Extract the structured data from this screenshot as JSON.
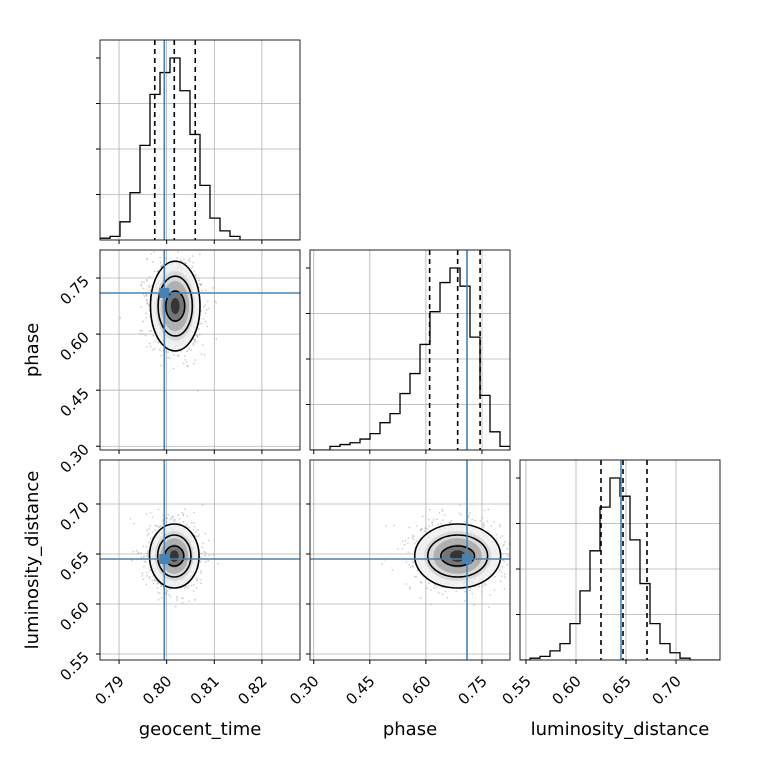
{
  "chart_data": {
    "type": "corner",
    "parameters": [
      "geocent_time",
      "phase",
      "luminosity_distance"
    ],
    "ranges": {
      "geocent_time": [
        0.786,
        0.828
      ],
      "phase": [
        0.29,
        0.825
      ],
      "luminosity_distance": [
        0.544,
        0.744
      ]
    },
    "ticks": {
      "geocent_time": [
        "0.79",
        "0.80",
        "0.81",
        "0.82"
      ],
      "phase": [
        "0.30",
        "0.45",
        "0.60",
        "0.75"
      ],
      "luminosity_distance": [
        "0.55",
        "0.60",
        "0.65",
        "0.70"
      ]
    },
    "truths": {
      "geocent_time": 0.7995,
      "phase": 0.71,
      "luminosity_distance": 0.645
    },
    "quantiles": {
      "geocent_time": [
        0.7975,
        0.8016,
        0.806
      ],
      "phase": [
        0.61,
        0.685,
        0.745
      ],
      "luminosity_distance": [
        0.625,
        0.647,
        0.671
      ]
    },
    "histograms": {
      "geocent_time": {
        "edges": [
          0.786,
          0.7881,
          0.7902,
          0.7923,
          0.7944,
          0.7965,
          0.7986,
          0.8007,
          0.8028,
          0.8049,
          0.807,
          0.8091,
          0.8112,
          0.8133,
          0.8154,
          0.8175,
          0.8196,
          0.8217,
          0.8238,
          0.8259,
          0.828
        ],
        "counts": [
          0.01,
          0.02,
          0.1,
          0.26,
          0.52,
          0.8,
          0.92,
          1.0,
          0.82,
          0.58,
          0.3,
          0.12,
          0.05,
          0.02,
          0.0,
          0.0,
          0.0,
          0.0,
          0.0,
          0.0
        ]
      },
      "phase": {
        "edges": [
          0.29,
          0.3168,
          0.3435,
          0.3703,
          0.397,
          0.4238,
          0.4505,
          0.4773,
          0.504,
          0.5308,
          0.5575,
          0.5843,
          0.611,
          0.6378,
          0.6645,
          0.6913,
          0.718,
          0.7448,
          0.7715,
          0.7983,
          0.825
        ],
        "counts": [
          0.0,
          0.0,
          0.02,
          0.03,
          0.04,
          0.06,
          0.09,
          0.15,
          0.2,
          0.31,
          0.42,
          0.58,
          0.76,
          0.92,
          1.0,
          0.9,
          0.62,
          0.3,
          0.1,
          0.02
        ]
      },
      "luminosity_distance": {
        "edges": [
          0.544,
          0.554,
          0.564,
          0.574,
          0.584,
          0.594,
          0.604,
          0.614,
          0.624,
          0.634,
          0.644,
          0.654,
          0.664,
          0.674,
          0.684,
          0.694,
          0.704,
          0.714,
          0.724,
          0.734,
          0.744
        ],
        "counts": [
          0.0,
          0.01,
          0.02,
          0.05,
          0.09,
          0.2,
          0.38,
          0.6,
          0.84,
          1.0,
          0.9,
          0.66,
          0.42,
          0.2,
          0.09,
          0.04,
          0.01,
          0.0,
          0.0,
          0.0
        ]
      }
    },
    "contours": {
      "phase_vs_geocent_time": {
        "center": [
          0.8018,
          0.675
        ],
        "levels": [
          {
            "rx": 0.002,
            "ry": 0.04
          },
          {
            "rx": 0.0036,
            "ry": 0.08
          },
          {
            "rx": 0.0052,
            "ry": 0.12
          }
        ]
      },
      "luminosity_distance_vs_geocent_time": {
        "center": [
          0.8016,
          0.648
        ],
        "levels": [
          {
            "rx": 0.002,
            "ry": 0.01
          },
          {
            "rx": 0.0035,
            "ry": 0.021
          },
          {
            "rx": 0.0052,
            "ry": 0.032
          }
        ]
      },
      "luminosity_distance_vs_phase": {
        "center": [
          0.685,
          0.648
        ],
        "levels": [
          {
            "rx": 0.045,
            "ry": 0.01
          },
          {
            "rx": 0.08,
            "ry": 0.021
          },
          {
            "rx": 0.115,
            "ry": 0.032
          }
        ]
      }
    },
    "grid": true,
    "colors": {
      "truth": "#4682b4",
      "hist": "#000000",
      "grid": "#b0b0b0",
      "samples": "#9a9a9a"
    }
  }
}
